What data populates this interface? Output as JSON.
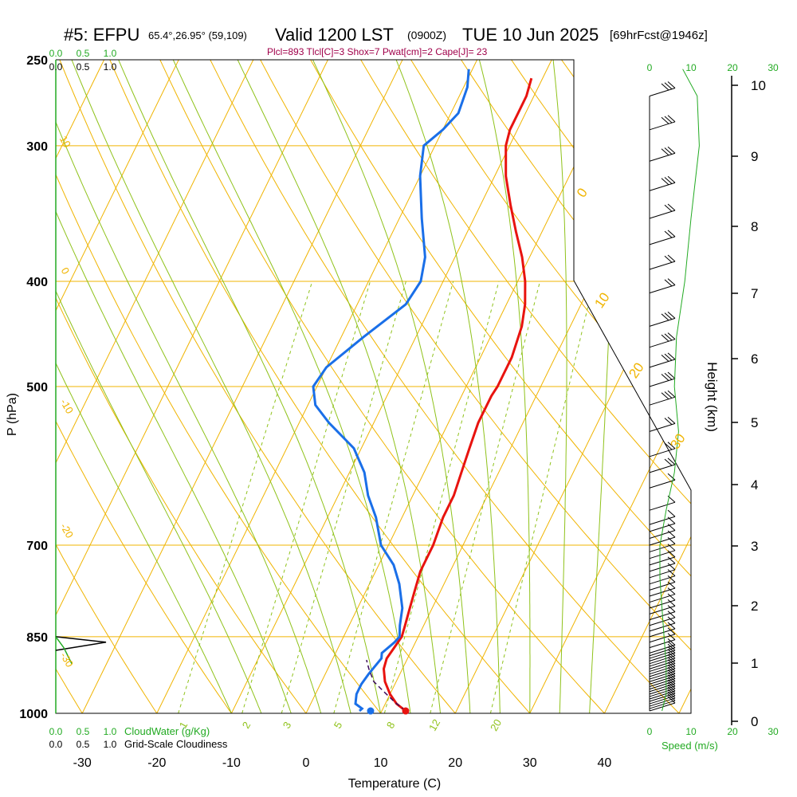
{
  "header": {
    "station": "#5: EFPU",
    "coords": "65.4°,26.95° (59,109)",
    "valid": "Valid 1200 LST",
    "zulu": "(0900Z)",
    "date": "TUE 10 Jun 2025",
    "forecast": "[69hrFcst@1946z]",
    "indices": "Plcl=893 Tlcl[C]=3 Shox=7 Pwat[cm]=2 Cape[J]= 23"
  },
  "colors": {
    "temperature": "#e8130f",
    "dewpoint": "#1a6fe8",
    "isotherm": "#f0b400",
    "dry_adiabat": "#f0b400",
    "moist_adiabat": "#8fc21a",
    "mixing_ratio": "#8fc21a",
    "cloud": "#22aa22",
    "indices": "#a0004a",
    "parcel": "#3a0a5a"
  },
  "chart_data": {
    "type": "line",
    "xlabel": "Temperature (C)",
    "ylabel": "P (hPa)",
    "y2label": "Height (km)",
    "xlim": [
      -35,
      45
    ],
    "ylim": [
      1000,
      250
    ],
    "x_ticks": [
      -30,
      -20,
      -10,
      0,
      10,
      20,
      30,
      40
    ],
    "p_ticks": [
      250,
      300,
      400,
      500,
      700,
      850,
      1000
    ],
    "height_ticks": [
      0,
      1,
      2,
      3,
      4,
      5,
      6,
      7,
      8,
      9,
      10
    ],
    "adiabat_labels": [
      "10",
      "0",
      "-10",
      "-20",
      "-30"
    ],
    "moist_labels": [
      "0",
      "10",
      "20",
      "30"
    ],
    "mixing_labels": [
      "1",
      "2",
      "3",
      "5",
      "8",
      "12",
      "20"
    ],
    "cloud_scale": {
      "top_green": [
        "0.0",
        "0.5",
        "1.0"
      ],
      "top_black": [
        "0.0",
        "0.5",
        "1.0"
      ],
      "bottom_green": [
        "0.0",
        "0.5",
        "1.0"
      ],
      "bottom_black": [
        "0.0",
        "0.5",
        "1.0"
      ],
      "cloudwater_label": "CloudWater (g/Kg)",
      "cloudiness_label": "Grid-Scale Cloudiness"
    },
    "speed_scale": {
      "top_ticks": [
        "0",
        "10",
        "20",
        "30"
      ],
      "bottom_ticks": [
        "0",
        "10",
        "20",
        "30"
      ],
      "label": "Speed (m/s)"
    },
    "series": [
      {
        "name": "Temperature",
        "points": [
          [
            13.2,
            995
          ],
          [
            11.5,
            980
          ],
          [
            10,
            960
          ],
          [
            8.5,
            935
          ],
          [
            7.5,
            910
          ],
          [
            7.2,
            890
          ],
          [
            7.5,
            870
          ],
          [
            7.8,
            850
          ],
          [
            7.5,
            830
          ],
          [
            7,
            800
          ],
          [
            6.5,
            770
          ],
          [
            6,
            740
          ],
          [
            6,
            700
          ],
          [
            5.5,
            660
          ],
          [
            5.5,
            630
          ],
          [
            5,
            600
          ],
          [
            4.5,
            570
          ],
          [
            4,
            540
          ],
          [
            4,
            510
          ],
          [
            4.2,
            500
          ],
          [
            4.2,
            470
          ],
          [
            3.5,
            440
          ],
          [
            2.5,
            420
          ],
          [
            1,
            400
          ],
          [
            -1,
            380
          ],
          [
            -3.5,
            360
          ],
          [
            -6,
            340
          ],
          [
            -8.5,
            320
          ],
          [
            -10.5,
            300
          ],
          [
            -11,
            290
          ],
          [
            -11,
            280
          ],
          [
            -11,
            270
          ],
          [
            -11.5,
            260
          ]
        ]
      },
      {
        "name": "Dewpoint",
        "points": [
          [
            7,
            995
          ],
          [
            7.2,
            990
          ],
          [
            6,
            980
          ],
          [
            5.5,
            960
          ],
          [
            5.5,
            940
          ],
          [
            5.8,
            920
          ],
          [
            6.5,
            890
          ],
          [
            6.2,
            880
          ],
          [
            7.2,
            860
          ],
          [
            7.5,
            850
          ],
          [
            6.8,
            830
          ],
          [
            6,
            800
          ],
          [
            4,
            760
          ],
          [
            2,
            730
          ],
          [
            -1,
            700
          ],
          [
            -3.5,
            660
          ],
          [
            -6,
            630
          ],
          [
            -8,
            600
          ],
          [
            -11,
            570
          ],
          [
            -16,
            540
          ],
          [
            -19,
            520
          ],
          [
            -20.5,
            500
          ],
          [
            -20,
            480
          ],
          [
            -17,
            450
          ],
          [
            -13.5,
            420
          ],
          [
            -13,
            400
          ],
          [
            -14,
            380
          ],
          [
            -17,
            350
          ],
          [
            -20,
            320
          ],
          [
            -21.5,
            300
          ],
          [
            -20,
            290
          ],
          [
            -19,
            280
          ],
          [
            -19.5,
            265
          ],
          [
            -20.5,
            255
          ]
        ]
      },
      {
        "name": "Parcel",
        "points": [
          [
            13.2,
            995
          ],
          [
            11,
            975
          ],
          [
            9,
            955
          ],
          [
            7,
            935
          ],
          [
            5.5,
            910
          ],
          [
            4.6,
            893
          ]
        ]
      },
      {
        "name": "Cloud Water",
        "points": [
          [
            0,
            850
          ],
          [
            0.9,
            860
          ],
          [
            0.3,
            870
          ],
          [
            0,
            875
          ]
        ]
      },
      {
        "name": "Wind Speed",
        "points": [
          [
            3,
            995
          ],
          [
            4,
            960
          ],
          [
            4,
            900
          ],
          [
            3.5,
            850
          ],
          [
            3,
            800
          ],
          [
            2.5,
            750
          ],
          [
            2.5,
            700
          ],
          [
            4,
            650
          ],
          [
            6,
            600
          ],
          [
            7,
            550
          ],
          [
            6,
            500
          ],
          [
            6.5,
            450
          ],
          [
            8.5,
            400
          ],
          [
            10,
            350
          ],
          [
            12,
            300
          ],
          [
            11.5,
            270
          ],
          [
            8,
            255
          ]
        ]
      }
    ],
    "wind_barbs": {
      "speeds": [
        3,
        3,
        3,
        3,
        3,
        3,
        3,
        3,
        3,
        3,
        3,
        3,
        3,
        3,
        3,
        3,
        3,
        3,
        3,
        3,
        3,
        3,
        3,
        3,
        3,
        3,
        3,
        3,
        3,
        3,
        3,
        3,
        3,
        3,
        3,
        3,
        3,
        3,
        3,
        3,
        3,
        5,
        5,
        5,
        5,
        6,
        7,
        9,
        9,
        11,
        13,
        13,
        13,
        13,
        13,
        12,
        12,
        12,
        12,
        13,
        13,
        13,
        13
      ],
      "pressures": [
        995,
        990,
        985,
        980,
        975,
        970,
        965,
        960,
        955,
        950,
        945,
        940,
        935,
        930,
        925,
        920,
        915,
        910,
        905,
        900,
        895,
        890,
        885,
        880,
        870,
        860,
        850,
        840,
        830,
        820,
        810,
        800,
        790,
        780,
        770,
        760,
        750,
        740,
        730,
        720,
        710,
        700,
        690,
        680,
        670,
        650,
        620,
        600,
        580,
        550,
        520,
        500,
        480,
        460,
        440,
        410,
        390,
        370,
        350,
        330,
        310,
        290,
        270
      ]
    }
  }
}
